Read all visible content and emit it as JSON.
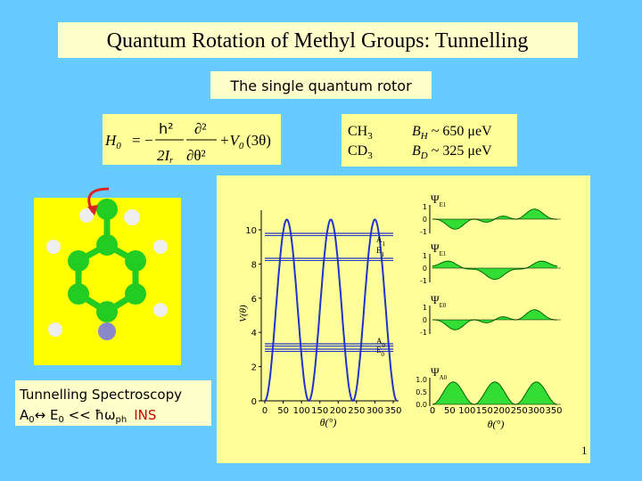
{
  "title": "Quantum Rotation of Methyl Groups: Tunnelling",
  "subtitle": "The single quantum rotor",
  "formula": {
    "lhs": "H",
    "lhs_sub": "0",
    "equals": "=",
    "minus": "−",
    "numerator": "h²",
    "denominator": "2I",
    "denominator_sub": "r",
    "d_num": "∂²",
    "d_den": "∂θ²",
    "potential": "+V",
    "potential_sub": "0",
    "argument": "(3θ)"
  },
  "isotopes": [
    {
      "name": "CH",
      "sub": "3",
      "constant": "B",
      "constant_sub": "H",
      "value": "~ 650 μeV"
    },
    {
      "name": "CD",
      "sub": "3",
      "constant": "B",
      "constant_sub": "D",
      "value": "~ 325 μeV"
    }
  ],
  "figure": {
    "potential": {
      "y_label": "V(θ)",
      "y_ticks": [
        "0",
        "2",
        "4",
        "6",
        "8",
        "10"
      ],
      "x_ticks": [
        "0",
        "50",
        "100",
        "150",
        "200",
        "250",
        "300",
        "350"
      ],
      "x_label": "θ(°)",
      "levels": [
        {
          "name": "A",
          "sub": "1"
        },
        {
          "name": "E",
          "sub": "1"
        },
        {
          "name": "E",
          "sub": "0"
        },
        {
          "name": "A",
          "sub": "0"
        }
      ]
    },
    "wavefunctions": {
      "panels": [
        {
          "name": "Ψ",
          "sub": "E1",
          "ticks": [
            "1",
            "0",
            "-1"
          ]
        },
        {
          "name": "Ψ",
          "sub": "E1",
          "ticks": [
            "1",
            "0",
            "-1"
          ]
        },
        {
          "name": "Ψ",
          "sub": "E0",
          "ticks": [
            "1",
            "0",
            "-1"
          ]
        },
        {
          "name": "Ψ",
          "sub": "A0",
          "ticks": [
            "1.0",
            "0.5",
            "0.0"
          ]
        }
      ],
      "x_ticks": [
        "0",
        "50",
        "100",
        "150",
        "200",
        "250",
        "300",
        "350"
      ],
      "x_label": "θ(°)"
    }
  },
  "spectroscopy": {
    "heading": "Tunnelling Spectroscopy",
    "a": "A",
    "a_sub": "0",
    "arrow": "↔ E",
    "e_sub": "0",
    "relation": " << ħω",
    "ph_sub": "ph",
    "method": "INS"
  },
  "page_number": "1"
}
